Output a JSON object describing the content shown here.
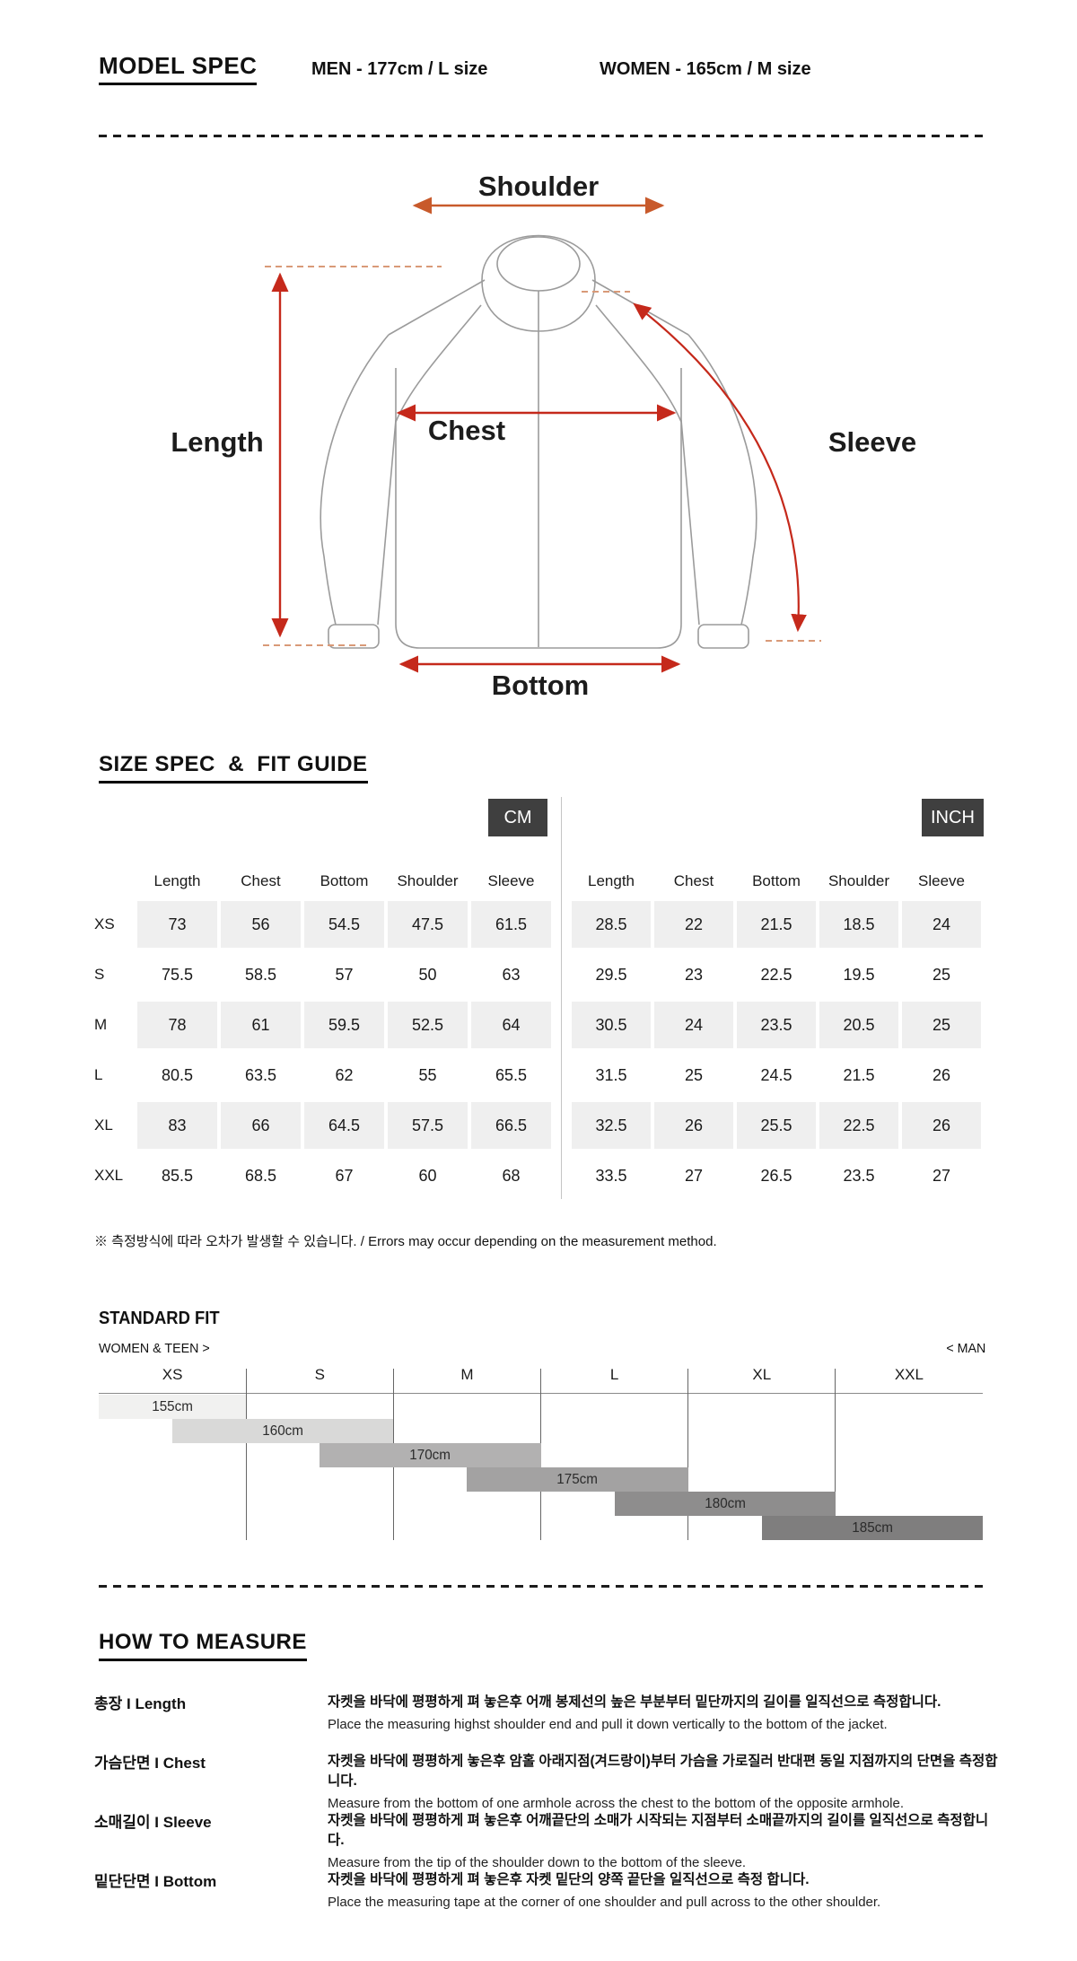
{
  "header": {
    "title": "MODEL SPEC",
    "men": "MEN - 177cm / L size",
    "women": "WOMEN - 165cm / M size"
  },
  "diagram": {
    "labels": {
      "shoulder": "Shoulder",
      "length": "Length",
      "chest": "Chest",
      "sleeve": "Sleeve",
      "bottom": "Bottom"
    },
    "colors": {
      "outline": "#9b9b9b",
      "red": "#c5291b",
      "orange": "#c85a2b",
      "tick": "#d99a78"
    }
  },
  "size_spec": {
    "heading": "SIZE SPEC  &  FIT GUIDE",
    "unit_cm": "CM",
    "unit_inch": "INCH",
    "columns": [
      "Length",
      "Chest",
      "Bottom",
      "Shoulder",
      "Sleeve"
    ],
    "sizes": [
      "XS",
      "S",
      "M",
      "L",
      "XL",
      "XXL"
    ],
    "cm": [
      [
        "73",
        "56",
        "54.5",
        "47.5",
        "61.5"
      ],
      [
        "75.5",
        "58.5",
        "57",
        "50",
        "63"
      ],
      [
        "78",
        "61",
        "59.5",
        "52.5",
        "64"
      ],
      [
        "80.5",
        "63.5",
        "62",
        "55",
        "65.5"
      ],
      [
        "83",
        "66",
        "64.5",
        "57.5",
        "66.5"
      ],
      [
        "85.5",
        "68.5",
        "67",
        "60",
        "68"
      ]
    ],
    "inch": [
      [
        "28.5",
        "22",
        "21.5",
        "18.5",
        "24"
      ],
      [
        "29.5",
        "23",
        "22.5",
        "19.5",
        "25"
      ],
      [
        "30.5",
        "24",
        "23.5",
        "20.5",
        "25"
      ],
      [
        "31.5",
        "25",
        "24.5",
        "21.5",
        "26"
      ],
      [
        "32.5",
        "26",
        "25.5",
        "22.5",
        "26"
      ],
      [
        "33.5",
        "27",
        "26.5",
        "23.5",
        "27"
      ]
    ],
    "note": "※ 측정방식에 따라 오차가 발생할 수 있습니다. / Errors may occur depending on the measurement method."
  },
  "standard_fit": {
    "heading": "STANDARD FIT",
    "left_note": "WOMEN & TEEN >",
    "right_note": "< MAN",
    "chart_data": {
      "type": "bar",
      "orientation": "horizontal-staircase",
      "categories": [
        "XS",
        "S",
        "M",
        "L",
        "XL",
        "XXL"
      ],
      "bars": [
        {
          "label": "155cm",
          "color": "#f1f1f0",
          "span": [
            0,
            1
          ]
        },
        {
          "label": "160cm",
          "color": "#d9d9d8",
          "span": [
            0.5,
            2
          ]
        },
        {
          "label": "170cm",
          "color": "#b2b1b1",
          "span": [
            1.5,
            3
          ]
        },
        {
          "label": "175cm",
          "color": "#a3a2a2",
          "span": [
            2.5,
            4
          ]
        },
        {
          "label": "180cm",
          "color": "#8e8d8d",
          "span": [
            3.5,
            5
          ]
        },
        {
          "label": "185cm",
          "color": "#7f7e7e",
          "span": [
            4.5,
            6
          ]
        }
      ]
    }
  },
  "how_to_measure": {
    "heading": "HOW TO MEASURE",
    "rows": [
      {
        "label": "총장 I Length",
        "kr": "자켓을 바닥에 평평하게 펴 놓은후 어깨 봉제선의 높은 부분부터 밑단까지의 길이를 일직선으로 측정합니다.",
        "en": "Place the measuring highst shoulder end and pull it down vertically to the bottom of the jacket."
      },
      {
        "label": "가슴단면 I Chest",
        "kr": "자켓을 바닥에 평평하게 놓은후 암홀 아래지점(겨드랑이)부터 가슴을 가로질러 반대편 동일 지점까지의 단면을 측정합니다.",
        "en": "Measure from the bottom of one armhole across the chest to the bottom of the opposite armhole."
      },
      {
        "label": "소매길이 I Sleeve",
        "kr": "자켓을 바닥에 평평하게 펴 놓은후 어깨끝단의 소매가 시작되는 지점부터 소매끝까지의 길이를 일직선으로 측정합니다.",
        "en": "Measure from the tip of the shoulder down to the bottom of the sleeve."
      },
      {
        "label": "밑단단면 I Bottom",
        "kr": "자켓을 바닥에 평평하게 펴 놓은후 자켓 밑단의 양쪽 끝단을 일직선으로 측정 합니다.",
        "en": "Place the measuring tape at the corner of one shoulder and pull across to the other shoulder."
      }
    ]
  }
}
